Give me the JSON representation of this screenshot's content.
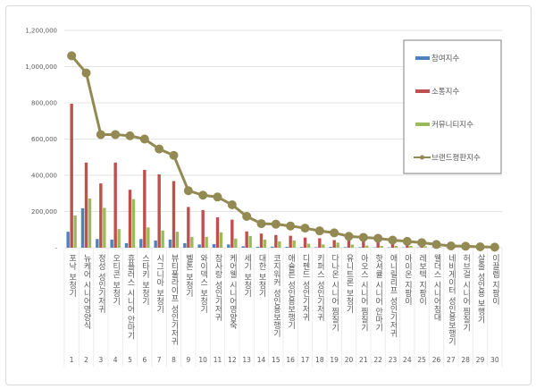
{
  "chart_data": {
    "type": "bar",
    "title": "",
    "xlabel": "",
    "ylabel": "",
    "ylim": [
      0,
      1200000
    ],
    "yticks": [
      "-",
      "200,000",
      "400,000",
      "600,000",
      "800,000",
      "1,000,000",
      "1,200,000"
    ],
    "grid": true,
    "legend_position": "top-right",
    "numbers": [
      "1",
      "2",
      "3",
      "4",
      "5",
      "6",
      "7",
      "8",
      "9",
      "10",
      "11",
      "12",
      "13",
      "14",
      "15",
      "16",
      "17",
      "18",
      "19",
      "20",
      "21",
      "22",
      "23",
      "24",
      "25",
      "26",
      "27",
      "28",
      "29",
      "30"
    ],
    "categories": [
      "포낙 보청기",
      "뉴케어 시니어영양식",
      "정성 성인기저귀",
      "오티콘 보청기",
      "휴플러스 시니어 안마기",
      "스타키 보청기",
      "시그니아 보청기",
      "뷰티풀라이프 성인기저귀",
      "벨톤 보청기",
      "와이덱스 보청기",
      "참사랑 성인기저귀",
      "케어웰 시니어영양죽",
      "세기 보청기",
      "대한 보청기",
      "코지워커 성인용보행기",
      "애슐른 성인용보행기",
      "디펜드 성인기저귀",
      "키퍼스 성인기저귀",
      "다나온 시니어 찜질기",
      "유니트론 보청기",
      "아오스 시니어 찜질기",
      "핫셔큘 시니어 안마기",
      "애니릴리프 성인기저귀",
      "아이온 지팡이",
      "레보텍 지팡이",
      "웰더스 시니어침대",
      "네비게이터 성인용보행기",
      "허브걸 시니어 찜질기",
      "살줄 성인용 보행기",
      "이끌렙 지팡이"
    ],
    "series": [
      {
        "name": "참여지수",
        "type": "bar",
        "color": "#4f81bd",
        "values": [
          88000,
          218000,
          48000,
          45000,
          25000,
          48000,
          40000,
          45000,
          25000,
          18000,
          20000,
          18000,
          8000,
          5000,
          6000,
          5000,
          4000,
          3000,
          5000,
          3000,
          3000,
          2000,
          2000,
          1500,
          1200,
          1000,
          800,
          600,
          500,
          400
        ]
      },
      {
        "name": "소통지수",
        "type": "bar",
        "color": "#c0504d",
        "values": [
          795000,
          470000,
          355000,
          470000,
          320000,
          430000,
          405000,
          368000,
          225000,
          208000,
          168000,
          155000,
          90000,
          78000,
          70000,
          66000,
          56000,
          52000,
          42000,
          42000,
          40000,
          38000,
          30000,
          25000,
          20000,
          14000,
          6000,
          5000,
          3000,
          2000
        ]
      },
      {
        "name": "커뮤니티지수",
        "type": "bar",
        "color": "#9bbb59",
        "values": [
          178000,
          272000,
          220000,
          103000,
          268000,
          112000,
          95000,
          88000,
          60000,
          60000,
          85000,
          50000,
          65000,
          45000,
          35000,
          40000,
          22000,
          18000,
          28000,
          17000,
          12000,
          10000,
          10000,
          10000,
          8000,
          4000,
          4000,
          3000,
          2000,
          1000
        ]
      },
      {
        "name": "브랜드평판지수",
        "type": "line",
        "color": "#938953",
        "values": [
          1060000,
          965000,
          625000,
          625000,
          618000,
          600000,
          545000,
          510000,
          315000,
          290000,
          280000,
          237000,
          173000,
          133000,
          130000,
          120000,
          108000,
          93000,
          82000,
          63000,
          57000,
          52000,
          42000,
          35000,
          28000,
          18000,
          10000,
          8000,
          5000,
          3000
        ]
      }
    ]
  }
}
